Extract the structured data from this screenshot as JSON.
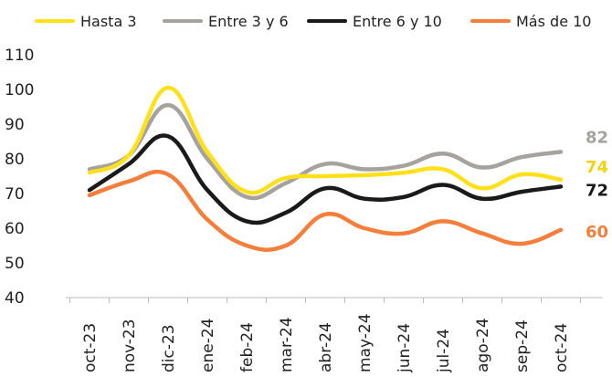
{
  "chart_data": {
    "type": "line",
    "title": "",
    "xlabel": "",
    "ylabel": "",
    "ylim": [
      40,
      110
    ],
    "yticks": [
      40,
      50,
      60,
      70,
      80,
      90,
      100,
      110
    ],
    "grid": false,
    "legend_position": "top",
    "categories": [
      "oct-23",
      "nov-23",
      "dic-23",
      "ene-24",
      "feb-24",
      "mar-24",
      "abr-24",
      "may-24",
      "jun-24",
      "jul-24",
      "ago-24",
      "sep-24",
      "oct-24"
    ],
    "series": [
      {
        "name": "Hasta 3",
        "color": "#FFE01B",
        "values": [
          76,
          81,
          100.5,
          82,
          70.5,
          74.5,
          75,
          75.3,
          76,
          77,
          71.5,
          75.5,
          74
        ],
        "end_label": "74"
      },
      {
        "name": "Entre 3 y 6",
        "color": "#A6A29E",
        "values": [
          77,
          81,
          95.5,
          80,
          69,
          73,
          78.5,
          77,
          78,
          81.5,
          77.5,
          80.5,
          82
        ],
        "end_label": "82"
      },
      {
        "name": "Entre 6 y 10",
        "color": "#1A1A1A",
        "values": [
          71,
          78.5,
          86.5,
          71,
          62,
          64.5,
          71.5,
          68.5,
          69,
          72.5,
          68.5,
          70.5,
          72
        ],
        "end_label": "72"
      },
      {
        "name": "Más de 10",
        "color": "#F47E3A",
        "values": [
          69.5,
          73.5,
          75.5,
          62.5,
          55,
          55,
          64,
          60,
          58.5,
          62,
          58.5,
          55.5,
          59.5
        ],
        "end_label": "60"
      }
    ]
  }
}
